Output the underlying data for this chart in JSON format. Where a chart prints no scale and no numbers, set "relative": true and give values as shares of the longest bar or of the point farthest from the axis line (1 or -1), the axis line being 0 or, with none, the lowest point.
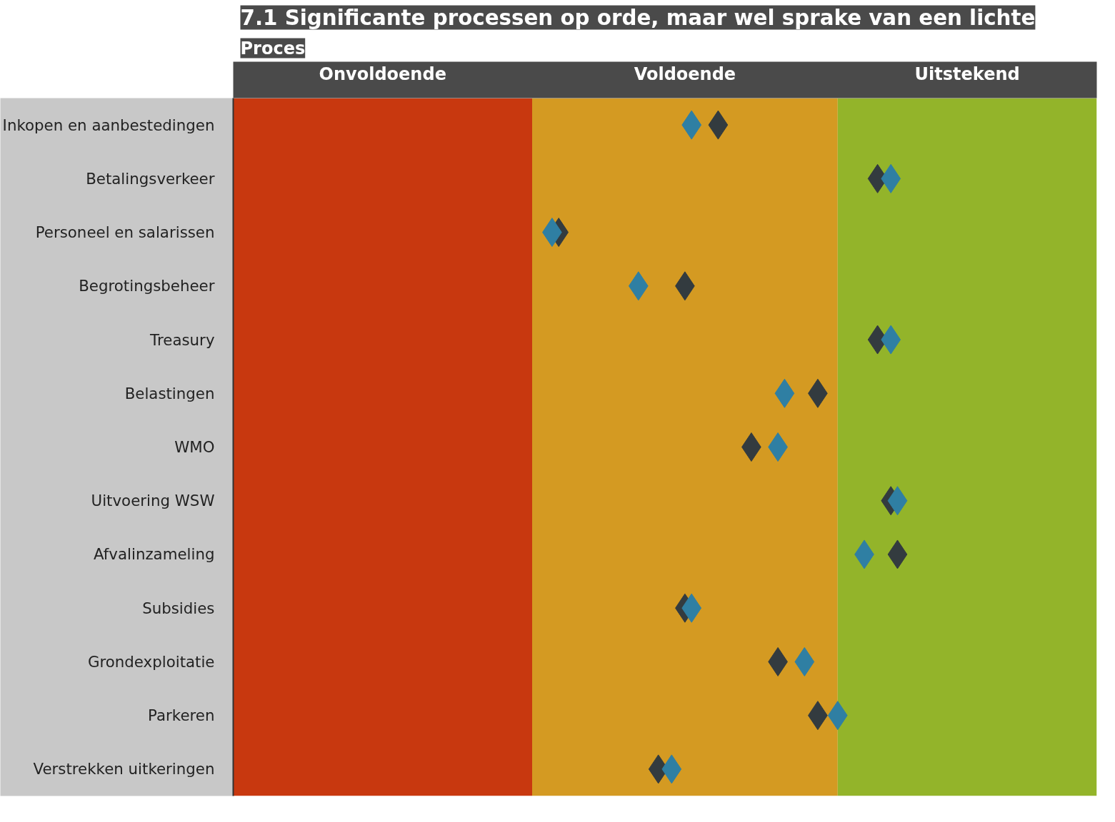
{
  "chart_data": {
    "type": "scatter",
    "title": "7.1 Significante processen op orde, maar wel sprake van een lichte",
    "ylabel": "Proces",
    "categories": [
      "Inkopen en aanbestedingen",
      "Betalingsverkeer",
      "Personeel en salarissen",
      "Begrotingsbeheer",
      "Treasury",
      "Belastingen",
      "WMO",
      "Uitvoering WSW",
      "Afvalinzameling",
      "Subsidies",
      "Grondexploitatie",
      "Parkeren",
      "Verstrekken uitkeringen"
    ],
    "orientation": "horizontal",
    "series": [
      {
        "color": "#333b3f",
        "values": [
          0.73,
          0.97,
          0.49,
          0.68,
          0.97,
          0.88,
          0.78,
          0.99,
          1,
          0.68,
          0.82,
          0.88,
          0.64
        ]
      },
      {
        "color": "#2f7fa3",
        "values": [
          0.69,
          0.99,
          0.48,
          0.61,
          0.99,
          0.83,
          0.82,
          1,
          0.95,
          0.69,
          0.86,
          0.91,
          0.66
        ]
      }
    ],
    "relative": true,
    "bands": [
      {
        "axis": "x",
        "from": 0,
        "to": 0.45,
        "color": "#c8380f",
        "label": "Onvoldoende"
      },
      {
        "axis": "x",
        "from": 0.45,
        "to": 0.91,
        "color": "#d49a22",
        "label": "Voldoende"
      },
      {
        "axis": "x",
        "from": 0.91,
        "to": 1.3,
        "color": "#93b42a",
        "label": "Uitstekend"
      }
    ],
    "marker": "diamond"
  }
}
